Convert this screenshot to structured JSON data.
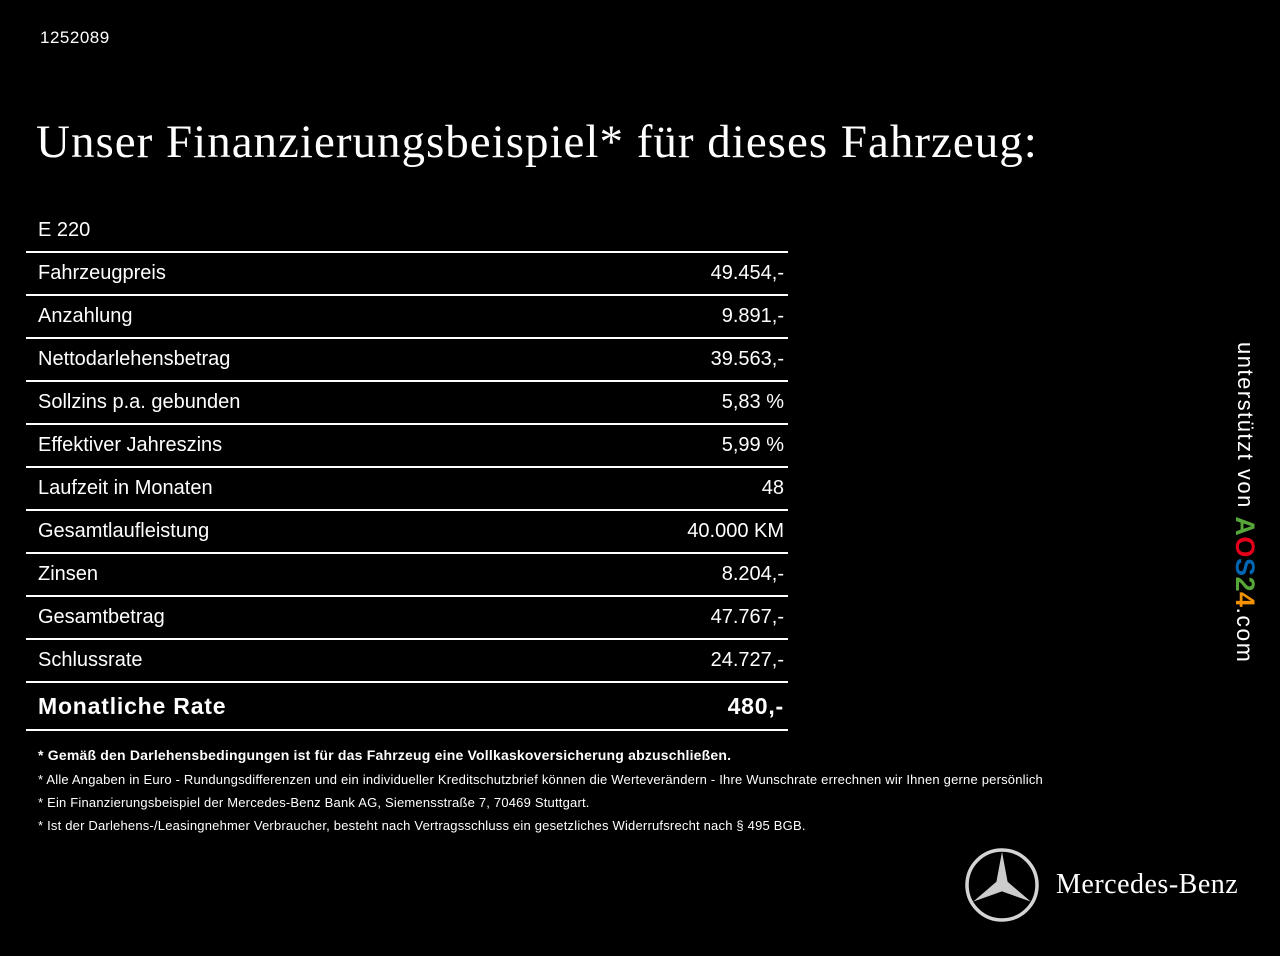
{
  "page": {
    "id_number": "1252089",
    "title": "Unser Finanzierungsbeispiel* für dieses Fahrzeug:"
  },
  "finance_table": {
    "model": "E 220",
    "rows": [
      {
        "label": "Fahrzeugpreis",
        "value": "49.454,-"
      },
      {
        "label": "Anzahlung",
        "value": "9.891,-"
      },
      {
        "label": "Nettodarlehensbetrag",
        "value": "39.563,-"
      },
      {
        "label": "Sollzins p.a. gebunden",
        "value": "5,83 %"
      },
      {
        "label": "Effektiver Jahreszins",
        "value": "5,99 %"
      },
      {
        "label": "Laufzeit in Monaten",
        "value": "48"
      },
      {
        "label": "Gesamtlaufleistung",
        "value": "40.000 KM"
      },
      {
        "label": "Zinsen",
        "value": "8.204,-"
      },
      {
        "label": "Gesamtbetrag",
        "value": "47.767,-"
      },
      {
        "label": "Schlussrate",
        "value": "24.727,-"
      }
    ],
    "highlight_row": {
      "label": "Monatliche Rate",
      "value": "480,-"
    }
  },
  "footnotes": [
    "* Gemäß den Darlehensbedingungen ist für das Fahrzeug eine Vollkaskoversicherung abzuschließen.",
    "* Alle Angaben in Euro - Rundungsdifferenzen und ein individueller Kreditschutzbrief können die Werteverändern - Ihre Wunschrate errechnen wir Ihnen gerne persönlich",
    "* Ein Finanzierungsbeispiel der Mercedes-Benz Bank AG, Siemensstraße 7, 70469 Stuttgart.",
    "* Ist der Darlehens-/Leasingnehmer Verbraucher, besteht nach Vertragsschluss ein gesetzliches Widerrufsrecht nach § 495 BGB."
  ],
  "watermark": {
    "prefix": "unterstützt von ",
    "brand_letters": [
      {
        "char": "A",
        "color": "#57a639"
      },
      {
        "char": "O",
        "color": "#e2001a"
      },
      {
        "char": "S",
        "color": "#0066b3"
      },
      {
        "char": "2",
        "color": "#57a639"
      },
      {
        "char": "4",
        "color": "#f39200"
      }
    ],
    "suffix": ".com"
  },
  "footer": {
    "brand_name": "Mercedes-Benz",
    "logo": "mercedes-star-icon"
  },
  "colors": {
    "background": "#000000",
    "text": "#ffffff",
    "line": "#ffffff",
    "logo_silver": "#cccccc"
  }
}
